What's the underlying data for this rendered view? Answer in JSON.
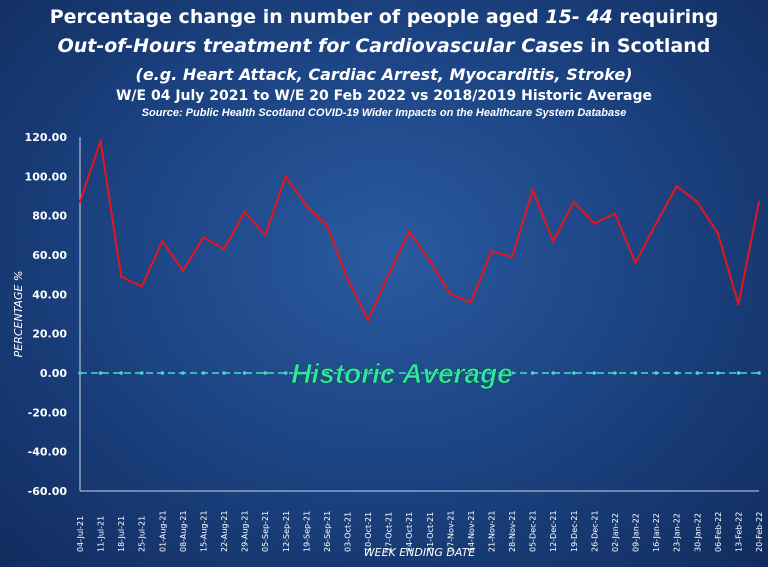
{
  "title": {
    "line1_pre": "Percentage change in number of people aged ",
    "line1_em": "15- 44",
    "line1_post": " requiring",
    "line2_em": "Out-of-Hours treatment for Cardiovascular Cases",
    "line2_post": " in Scotland",
    "line3": "(e.g. Heart Attack, Cardiac Arrest, Myocarditis, Stroke)",
    "line4": "W/E 04 July 2021 to W/E 20 Feb 2022 vs 2018/2019 Historic Average",
    "source": "Source: Public Health Scotland COVID-19 Wider Impacts on the Healthcare System Database"
  },
  "colors": {
    "series": "#e8141b",
    "baseline": "#4dd8c4",
    "annotation": "#2ee8a0"
  },
  "chart_data": {
    "type": "line",
    "xlabel": "WEEK ENDING DATE",
    "ylabel": "PERCENTAGE %",
    "ylim": [
      -60,
      120
    ],
    "yticks": [
      "120.00",
      "100.00",
      "80.00",
      "60.00",
      "40.00",
      "20.00",
      "0.00",
      "-20.00",
      "-40.00",
      "-60.00"
    ],
    "categories": [
      "04-Jul-21",
      "11-Jul-21",
      "18-Jul-21",
      "25-Jul-21",
      "01-Aug-21",
      "08-Aug-21",
      "15-Aug-21",
      "22-Aug-21",
      "29-Aug-21",
      "05-Sep-21",
      "12-Sep-21",
      "19-Sep-21",
      "26-Sep-21",
      "03-Oct-21",
      "10-Oct-21",
      "17-Oct-21",
      "24-Oct-21",
      "31-Oct-21",
      "07-Nov-21",
      "14-Nov-21",
      "21-Nov-21",
      "28-Nov-21",
      "05-Dec-21",
      "12-Dec-21",
      "19-Dec-21",
      "26-Dec-21",
      "02-Jan-22",
      "09-Jan-22",
      "16-Jan-22",
      "23-Jan-22",
      "30-Jan-22",
      "06-Feb-22",
      "13-Feb-22",
      "20-Feb-22"
    ],
    "series": [
      {
        "values": [
          87,
          118,
          49,
          44,
          67,
          52,
          69,
          63,
          82,
          70,
          100,
          85,
          75,
          48,
          27,
          50,
          72,
          57,
          40,
          36,
          62,
          59,
          93,
          67,
          87,
          76,
          81,
          56,
          76,
          95,
          87,
          71,
          35,
          87
        ]
      },
      {
        "values": [
          0,
          0,
          0,
          0,
          0,
          0,
          0,
          0,
          0,
          0,
          0,
          0,
          0,
          0,
          0,
          0,
          0,
          0,
          0,
          0,
          0,
          0,
          0,
          0,
          0,
          0,
          0,
          0,
          0,
          0,
          0,
          0,
          0,
          0
        ]
      }
    ],
    "annotation": "Historic Average",
    "grid": false,
    "legend": "none"
  }
}
